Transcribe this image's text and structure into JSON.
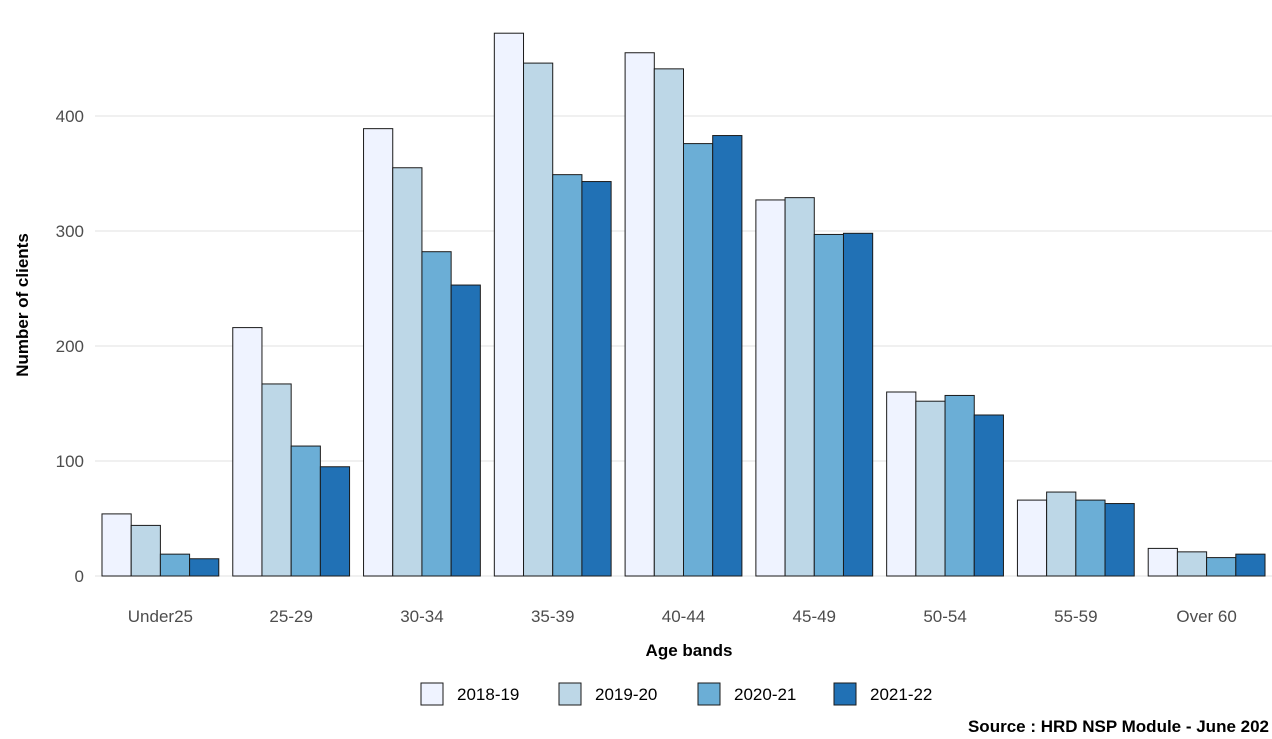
{
  "chart_data": {
    "type": "bar",
    "xlabel": "Age bands",
    "ylabel": "Number of clients",
    "caption": "Source : HRD NSP Module - June 202",
    "ylim": [
      0,
      470
    ],
    "yticks": [
      0,
      100,
      200,
      300,
      400
    ],
    "grid": true,
    "legend_position": "bottom",
    "categories": [
      "Under25",
      "25-29",
      "30-34",
      "35-39",
      "40-44",
      "45-49",
      "50-54",
      "55-59",
      "Over 60"
    ],
    "series": [
      {
        "name": "2018-19",
        "color": "#eff3ff",
        "values": [
          54,
          216,
          389,
          472,
          455,
          327,
          160,
          66,
          24
        ]
      },
      {
        "name": "2019-20",
        "color": "#bdd7e7",
        "values": [
          44,
          167,
          355,
          446,
          441,
          329,
          152,
          73,
          21
        ]
      },
      {
        "name": "2020-21",
        "color": "#6baed6",
        "values": [
          19,
          113,
          282,
          349,
          376,
          297,
          157,
          66,
          16
        ]
      },
      {
        "name": "2021-22",
        "color": "#2171b5",
        "values": [
          15,
          95,
          253,
          343,
          383,
          298,
          140,
          63,
          19
        ]
      }
    ]
  }
}
